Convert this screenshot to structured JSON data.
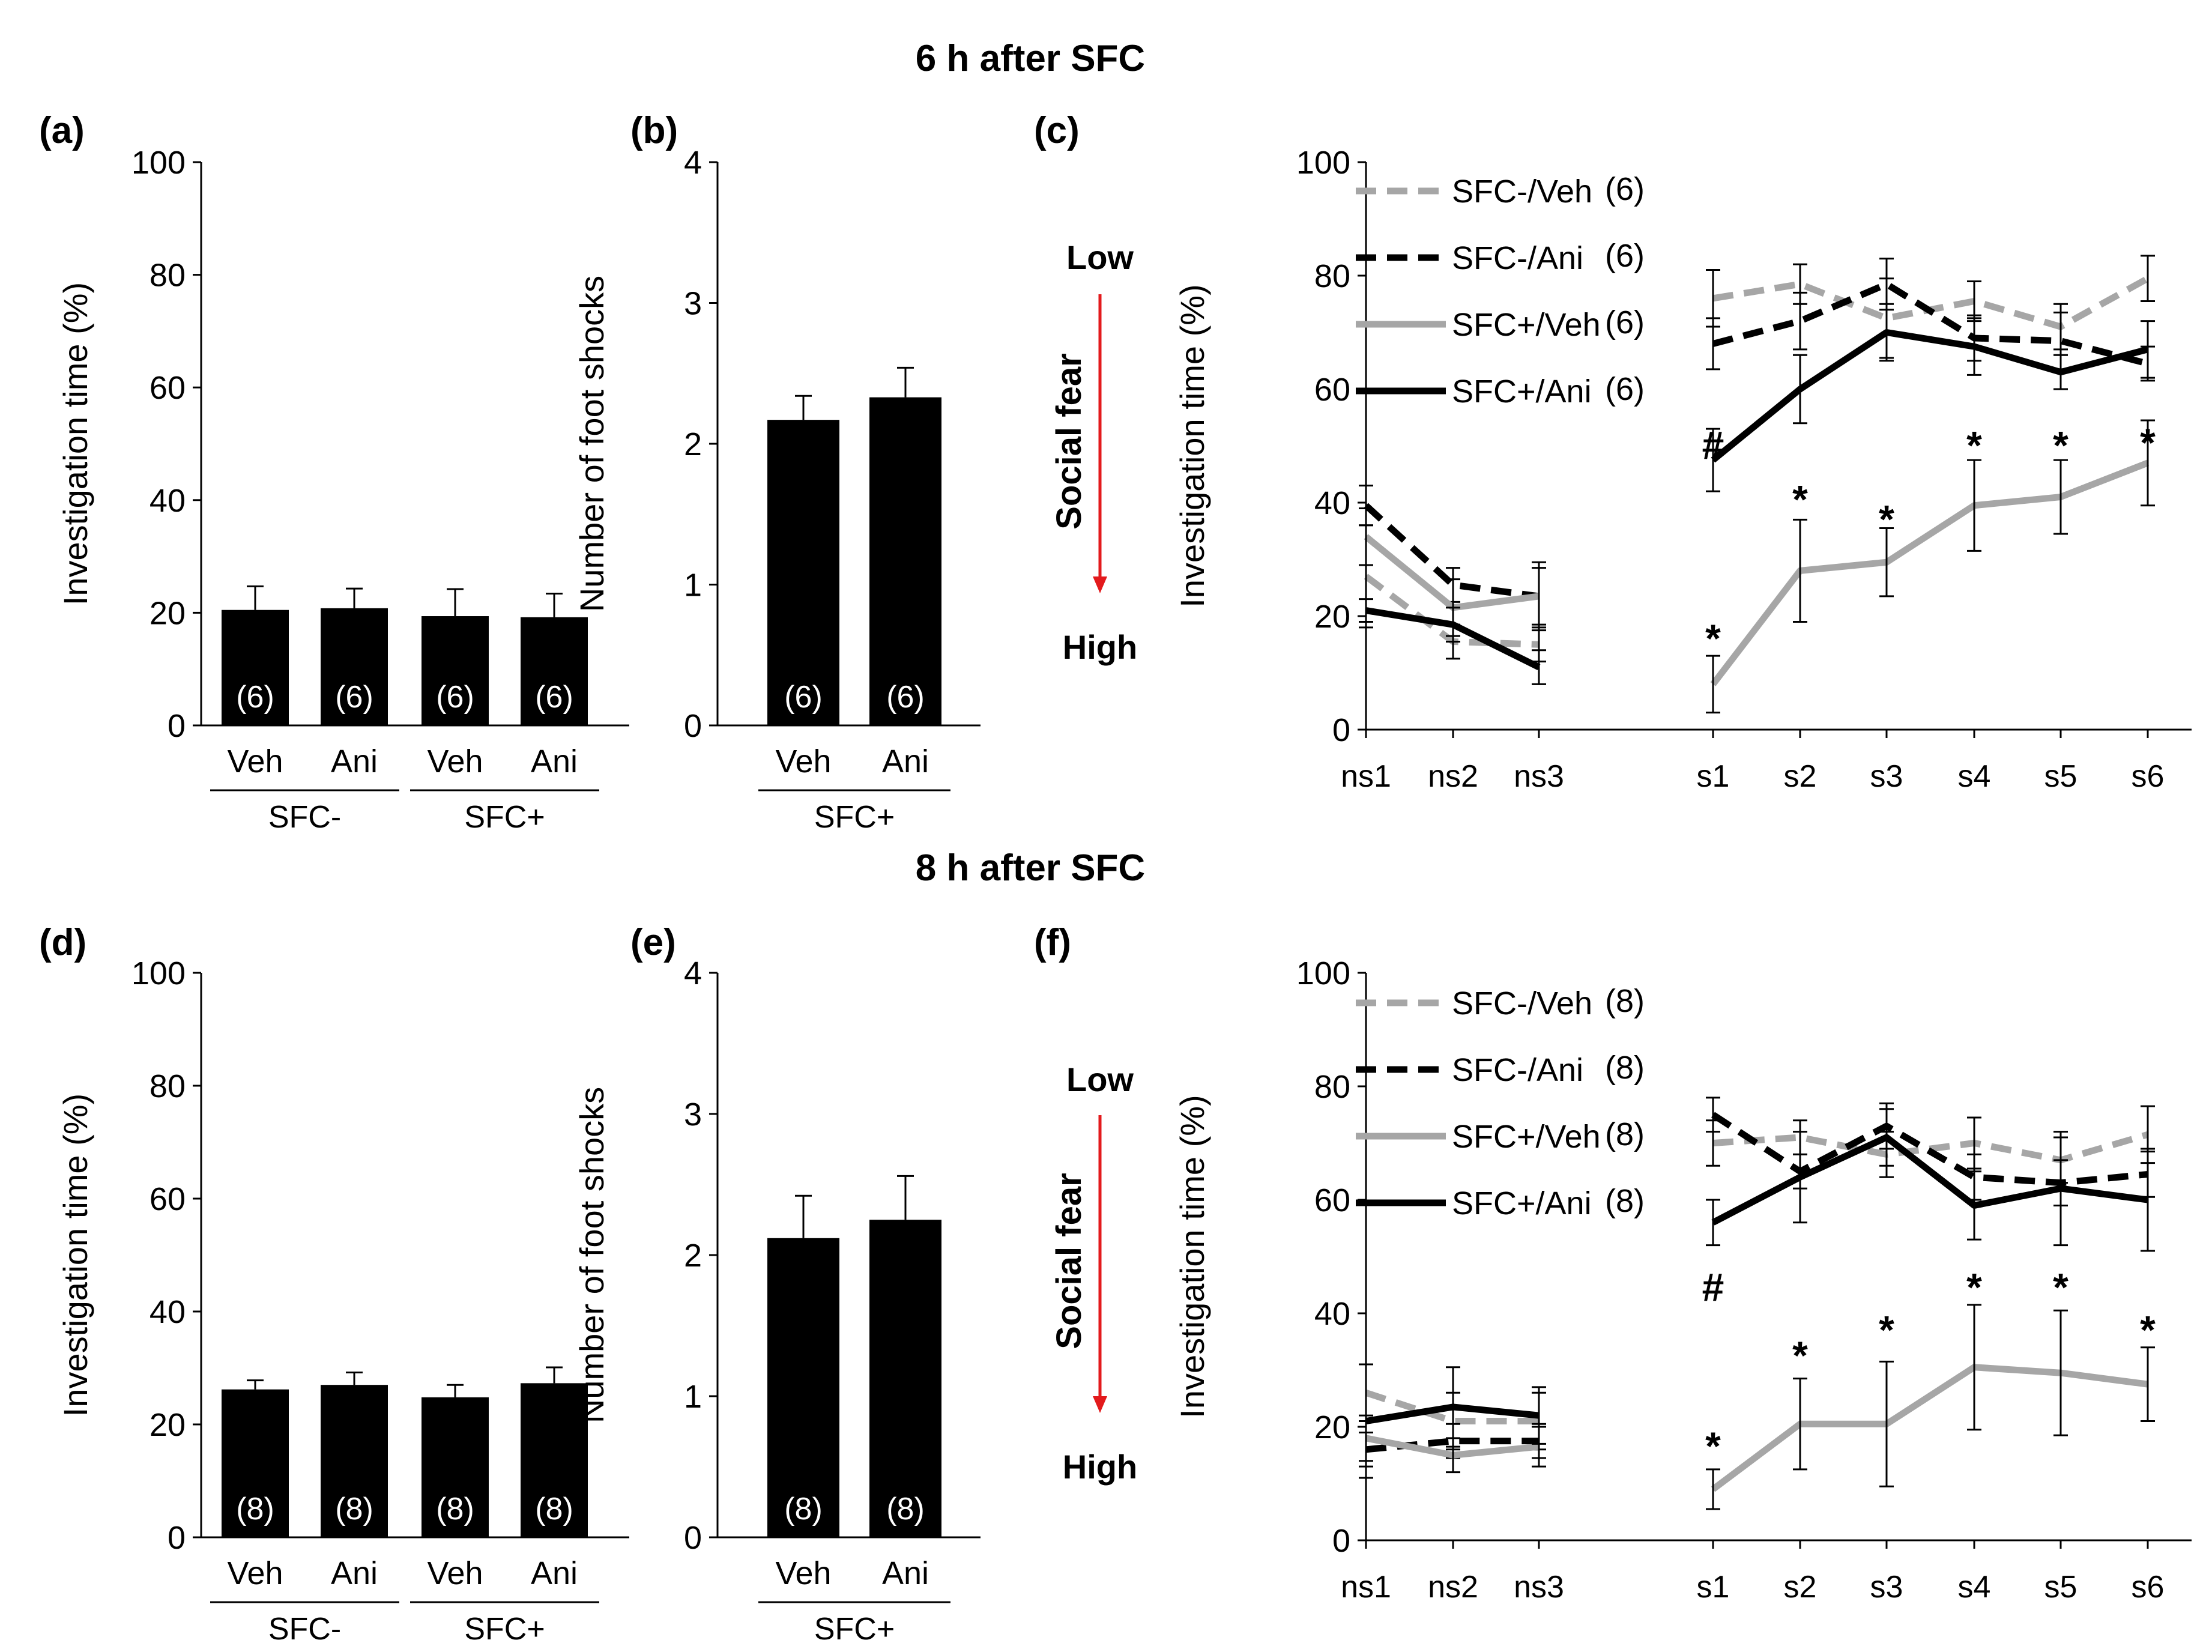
{
  "row_titles": [
    "6 h after SFC",
    "8 h after SFC"
  ],
  "panel_labels": [
    "(a)",
    "(b)",
    "(c)",
    "(d)",
    "(e)",
    "(f)"
  ],
  "colors": {
    "black": "#000000",
    "gray": "#a6a6a6",
    "arrow": "#e31a1c",
    "white": "#ffffff"
  },
  "social_fear_axis": {
    "low": "Low",
    "label": "Social fear",
    "high": "High"
  },
  "chart_data": [
    {
      "id": "a",
      "type": "bar",
      "ylabel": "Investigation time (%)",
      "ylim": [
        0,
        100
      ],
      "yticks": [
        0,
        20,
        40,
        60,
        80,
        100
      ],
      "categories": [
        "Veh",
        "Ani",
        "Veh",
        "Ani"
      ],
      "groups": [
        {
          "label": "SFC-",
          "span": [
            0,
            1
          ]
        },
        {
          "label": "SFC+",
          "span": [
            2,
            3
          ]
        }
      ],
      "values": [
        20.5,
        20.8,
        19.4,
        19.2
      ],
      "errors": [
        4.2,
        3.5,
        4.8,
        4.2
      ],
      "n_labels": [
        "(6)",
        "(6)",
        "(6)",
        "(6)"
      ]
    },
    {
      "id": "b",
      "type": "bar",
      "ylabel": "Number of foot shocks",
      "ylim": [
        0,
        4
      ],
      "yticks": [
        0,
        1,
        2,
        3,
        4
      ],
      "categories": [
        "Veh",
        "Ani"
      ],
      "groups": [
        {
          "label": "SFC+",
          "span": [
            0,
            1
          ]
        }
      ],
      "values": [
        2.17,
        2.33
      ],
      "errors": [
        0.17,
        0.21
      ],
      "n_labels": [
        "(6)",
        "(6)"
      ]
    },
    {
      "id": "c",
      "type": "line",
      "ylabel": "Investigation time (%)",
      "ylim": [
        0,
        100
      ],
      "yticks": [
        0,
        20,
        40,
        60,
        80,
        100
      ],
      "categories": [
        "ns1",
        "ns2",
        "ns3",
        "s1",
        "s2",
        "s3",
        "s4",
        "s5",
        "s6"
      ],
      "series": [
        {
          "name": "SFC-/Veh",
          "n": "(6)",
          "color": "gray",
          "dashed": true,
          "values": [
            27,
            15.5,
            15,
            76,
            78.5,
            72.5,
            75.5,
            71,
            79.5
          ],
          "errors": [
            9,
            3,
            3,
            5,
            3.5,
            7,
            3.5,
            4,
            4
          ]
        },
        {
          "name": "SFC-/Ani",
          "n": "(6)",
          "color": "black",
          "dashed": true,
          "values": [
            39.5,
            25.5,
            23.5,
            68,
            72,
            78.5,
            69,
            68.5,
            64.5
          ],
          "errors": [
            3.5,
            3,
            6,
            4.5,
            5,
            4.5,
            4,
            5,
            3
          ]
        },
        {
          "name": "SFC+/Veh",
          "n": "(6)",
          "color": "gray",
          "dashed": false,
          "values": [
            34,
            21.5,
            23.5,
            8,
            28,
            29.5,
            39.5,
            41,
            47
          ],
          "errors": [
            5,
            5,
            5,
            5,
            9,
            6,
            8,
            6.5,
            7.5
          ]
        },
        {
          "name": "SFC+/Ani",
          "n": "(6)",
          "color": "black",
          "dashed": false,
          "values": [
            21,
            18.5,
            11,
            47.5,
            60,
            70,
            67.5,
            63,
            67
          ],
          "errors": [
            2,
            3,
            3,
            5.5,
            6,
            5,
            5,
            3,
            5
          ]
        }
      ],
      "annotations": [
        {
          "x": "s1",
          "y": 50,
          "text": "#"
        },
        {
          "x": "s1",
          "y": 16,
          "text": "*"
        },
        {
          "x": "s2",
          "y": 40.5,
          "text": "*"
        },
        {
          "x": "s3",
          "y": 37,
          "text": "*"
        },
        {
          "x": "s4",
          "y": 50,
          "text": "*"
        },
        {
          "x": "s5",
          "y": 50,
          "text": "*"
        },
        {
          "x": "s6",
          "y": 50.5,
          "text": "*"
        }
      ]
    },
    {
      "id": "d",
      "type": "bar",
      "ylabel": "Investigation time (%)",
      "ylim": [
        0,
        100
      ],
      "yticks": [
        0,
        20,
        40,
        60,
        80,
        100
      ],
      "categories": [
        "Veh",
        "Ani",
        "Veh",
        "Ani"
      ],
      "groups": [
        {
          "label": "SFC-",
          "span": [
            0,
            1
          ]
        },
        {
          "label": "SFC+",
          "span": [
            2,
            3
          ]
        }
      ],
      "values": [
        26.2,
        27,
        24.8,
        27.3
      ],
      "errors": [
        1.6,
        2.2,
        2.2,
        2.8
      ],
      "n_labels": [
        "(8)",
        "(8)",
        "(8)",
        "(8)"
      ]
    },
    {
      "id": "e",
      "type": "bar",
      "ylabel": "Number of foot shocks",
      "ylim": [
        0,
        4
      ],
      "yticks": [
        0,
        1,
        2,
        3,
        4
      ],
      "categories": [
        "Veh",
        "Ani"
      ],
      "groups": [
        {
          "label": "SFC+",
          "span": [
            0,
            1
          ]
        }
      ],
      "values": [
        2.12,
        2.25
      ],
      "errors": [
        0.3,
        0.31
      ],
      "n_labels": [
        "(8)",
        "(8)"
      ]
    },
    {
      "id": "f",
      "type": "line",
      "ylabel": "Investigation time (%)",
      "ylim": [
        0,
        100
      ],
      "yticks": [
        0,
        20,
        40,
        60,
        80,
        100
      ],
      "categories": [
        "ns1",
        "ns2",
        "ns3",
        "s1",
        "s2",
        "s3",
        "s4",
        "s5",
        "s6"
      ],
      "series": [
        {
          "name": "SFC-/Veh",
          "n": "(8)",
          "color": "gray",
          "dashed": true,
          "values": [
            26,
            21,
            21,
            70,
            71,
            68,
            70,
            67,
            71.5
          ],
          "errors": [
            5,
            5,
            5,
            4,
            3,
            4,
            4.5,
            4,
            5
          ]
        },
        {
          "name": "SFC-/Ani",
          "n": "(8)",
          "color": "black",
          "dashed": true,
          "values": [
            16,
            17.5,
            17.5,
            75,
            65,
            73,
            64,
            63,
            64.5
          ],
          "errors": [
            3,
            3,
            3,
            3,
            3,
            4,
            4,
            4,
            4
          ]
        },
        {
          "name": "SFC+/Veh",
          "n": "(8)",
          "color": "gray",
          "dashed": false,
          "values": [
            18,
            15,
            16.5,
            9,
            20.5,
            20.5,
            30.5,
            29.5,
            27.5
          ],
          "errors": [
            4,
            3,
            3.5,
            3.5,
            8,
            11,
            11,
            11,
            6.5
          ]
        },
        {
          "name": "SFC+/Ani",
          "n": "(8)",
          "color": "black",
          "dashed": false,
          "values": [
            21,
            23.5,
            22,
            56,
            64,
            71,
            59,
            62,
            60
          ],
          "errors": [
            10,
            7,
            5,
            4,
            8,
            5,
            6,
            10,
            9
          ]
        }
      ],
      "annotations": [
        {
          "x": "s1",
          "y": 44.5,
          "text": "#"
        },
        {
          "x": "s1",
          "y": 16.5,
          "text": "*"
        },
        {
          "x": "s2",
          "y": 32.5,
          "text": "*"
        },
        {
          "x": "s3",
          "y": 37,
          "text": "*"
        },
        {
          "x": "s4",
          "y": 44.5,
          "text": "*"
        },
        {
          "x": "s5",
          "y": 44.5,
          "text": "*"
        },
        {
          "x": "s6",
          "y": 37,
          "text": "*"
        }
      ]
    }
  ]
}
